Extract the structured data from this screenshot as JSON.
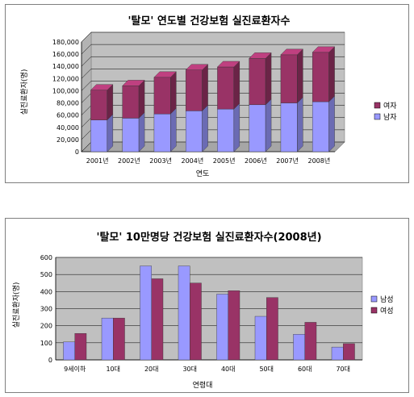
{
  "chart_data": [
    {
      "type": "bar",
      "stacked": true,
      "title": "'탈모' 연도별 건강보험 실진료환자수",
      "xlabel": "연도",
      "ylabel": "실진료환자(명)",
      "categories": [
        "2001년",
        "2002년",
        "2003년",
        "2004년",
        "2005년",
        "2006년",
        "2007년",
        "2008년"
      ],
      "y_ticks": [
        "0",
        "20,000",
        "40,000",
        "60,000",
        "80,000",
        "100,000",
        "120,000",
        "140,000",
        "160,000",
        "180,000"
      ],
      "ylim": [
        0,
        180000
      ],
      "series": [
        {
          "name": "남자",
          "color": "#9999ff",
          "values": [
            52000,
            55000,
            62000,
            67000,
            70000,
            77000,
            80000,
            82000
          ]
        },
        {
          "name": "여자",
          "color": "#993366",
          "values": [
            49000,
            53000,
            60000,
            67000,
            69000,
            76000,
            79000,
            81000
          ]
        }
      ],
      "legend_order": [
        "여자",
        "남자"
      ],
      "legend": "right",
      "grid": true
    },
    {
      "type": "bar",
      "title": "'탈모' 10만명당 건강보험 실진료환자수(2008년)",
      "xlabel": "연령대",
      "ylabel": "실진료환자(명)",
      "categories": [
        "9세이하",
        "10대",
        "20대",
        "30대",
        "40대",
        "50대",
        "60대",
        "70대"
      ],
      "y_ticks": [
        "0",
        "100",
        "200",
        "300",
        "400",
        "500",
        "600"
      ],
      "ylim": [
        0,
        600
      ],
      "series": [
        {
          "name": "남성",
          "color": "#9999ff",
          "values": [
            105,
            245,
            550,
            550,
            385,
            255,
            150,
            75
          ]
        },
        {
          "name": "여성",
          "color": "#993366",
          "values": [
            155,
            245,
            475,
            450,
            405,
            365,
            220,
            95
          ]
        }
      ],
      "legend_order": [
        "남성",
        "여성"
      ],
      "legend": "right",
      "grid": true
    }
  ]
}
